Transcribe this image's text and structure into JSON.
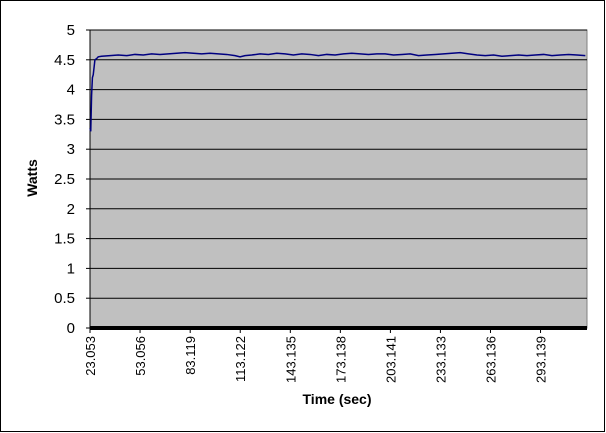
{
  "chart_data": {
    "type": "line",
    "x_label": "Time (sec)",
    "y_label": "Watts",
    "x": [
      23.053,
      23.5,
      24,
      24.5,
      25,
      26,
      27,
      28,
      30,
      35,
      40,
      45,
      50,
      55,
      60,
      65,
      70,
      75,
      80,
      85,
      90,
      95,
      100,
      105,
      110,
      113,
      116,
      120,
      125,
      130,
      135,
      140,
      145,
      150,
      155,
      160,
      165,
      170,
      175,
      180,
      185,
      190,
      195,
      200,
      205,
      210,
      215,
      220,
      225,
      230,
      235,
      240,
      245,
      250,
      255,
      260,
      265,
      270,
      275,
      280,
      285,
      290,
      295,
      300,
      305,
      310,
      315,
      320
    ],
    "series": [
      {
        "name": "Watts",
        "color": "#000080",
        "values": [
          3.35,
          3.3,
          3.9,
          4.2,
          4.25,
          4.5,
          4.52,
          4.55,
          4.56,
          4.57,
          4.58,
          4.57,
          4.59,
          4.58,
          4.6,
          4.59,
          4.6,
          4.61,
          4.62,
          4.61,
          4.6,
          4.61,
          4.6,
          4.59,
          4.57,
          4.55,
          4.57,
          4.58,
          4.6,
          4.59,
          4.61,
          4.6,
          4.58,
          4.6,
          4.59,
          4.57,
          4.59,
          4.58,
          4.6,
          4.61,
          4.6,
          4.59,
          4.6,
          4.6,
          4.58,
          4.59,
          4.6,
          4.57,
          4.58,
          4.59,
          4.6,
          4.61,
          4.62,
          4.6,
          4.58,
          4.57,
          4.58,
          4.56,
          4.57,
          4.58,
          4.57,
          4.58,
          4.59,
          4.57,
          4.58,
          4.59,
          4.58,
          4.57
        ]
      }
    ],
    "xlim": [
      23.053,
      321
    ],
    "xticks": [
      23.053,
      53.056,
      83.119,
      113.122,
      143.135,
      173.138,
      203.141,
      233.133,
      263.136,
      293.139
    ],
    "ylim": [
      0,
      5
    ],
    "yticks": [
      0,
      0.5,
      1,
      1.5,
      2,
      2.5,
      3,
      3.5,
      4,
      4.5,
      5
    ],
    "grid": true,
    "plot_background": "#c0c0c0"
  }
}
